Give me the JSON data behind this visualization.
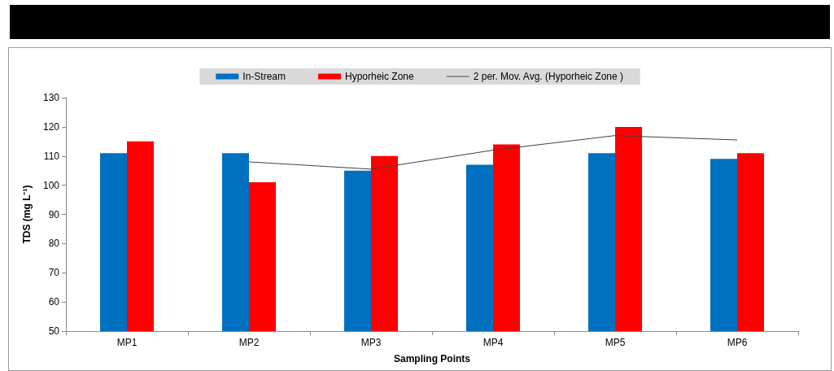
{
  "chart_data": {
    "type": "bar",
    "xlabel": "Sampling Points",
    "ylabel": "TDS (mg L⁻¹)",
    "categories": [
      "MP1",
      "MP2",
      "MP3",
      "MP4",
      "MP5",
      "MP6"
    ],
    "series": [
      {
        "name": "In-Stream",
        "color": "#0070c0",
        "values": [
          111,
          111,
          105,
          107,
          111,
          109
        ]
      },
      {
        "name": "Hyporheic Zone",
        "color": "#ff0000",
        "values": [
          115,
          101,
          110,
          114,
          120,
          111
        ]
      },
      {
        "name": "2 per. Mov. Avg. (Hyporheic Zone )",
        "type": "line",
        "color": "#404040",
        "values": [
          null,
          108,
          105.5,
          112,
          117,
          115.5
        ]
      }
    ],
    "ylim": [
      50,
      130
    ],
    "yticks": [
      50,
      60,
      70,
      80,
      90,
      100,
      110,
      120,
      130
    ],
    "grid": false,
    "legend": "top",
    "marker": "none",
    "line_style": "solid"
  }
}
